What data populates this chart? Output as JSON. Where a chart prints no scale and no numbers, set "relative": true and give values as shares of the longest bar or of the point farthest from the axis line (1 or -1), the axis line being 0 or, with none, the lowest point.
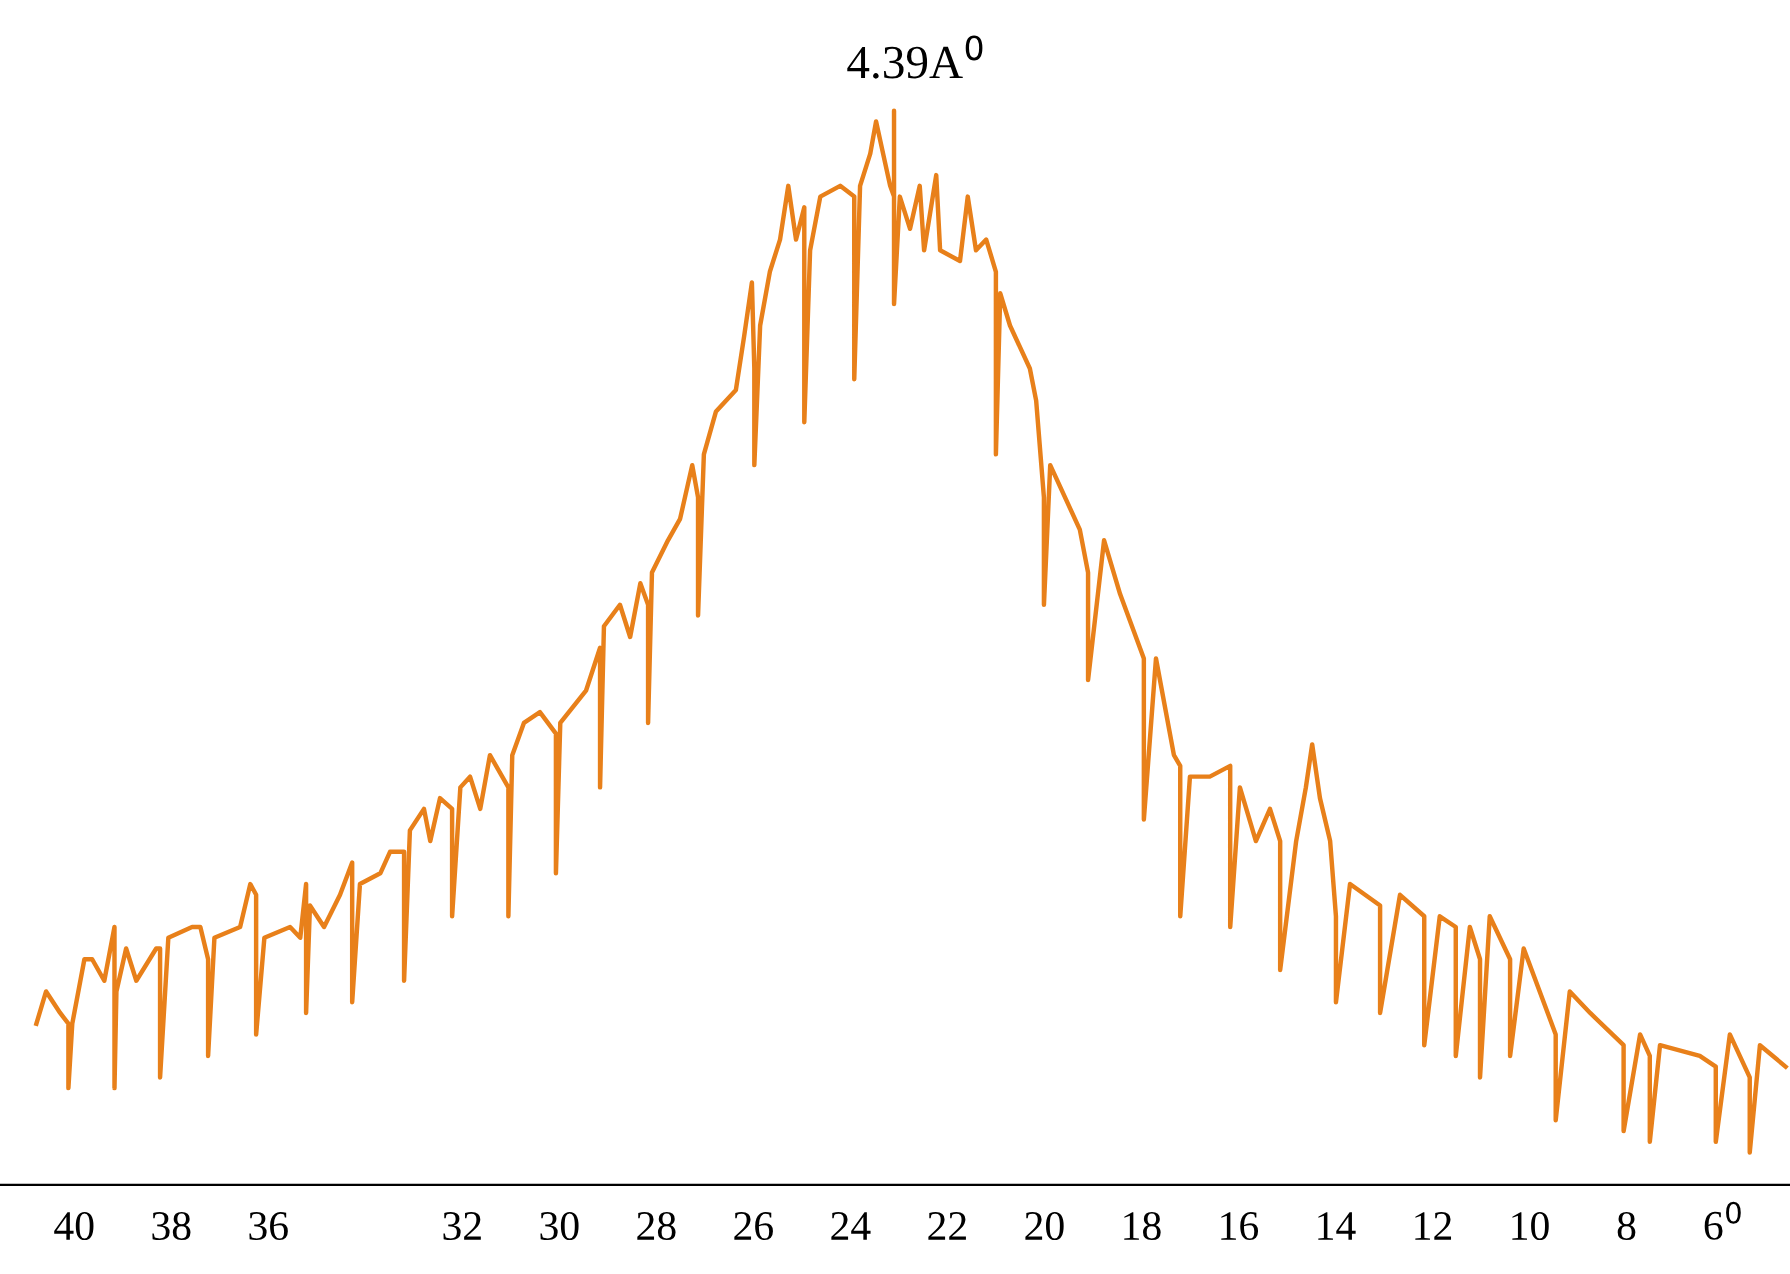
{
  "chart_data": {
    "type": "line",
    "relative": true,
    "color": "#e8801a",
    "annotations": [
      {
        "text": "4.39A$^{0}$",
        "x": 23.1,
        "y": 1.0
      }
    ],
    "xlim": [
      41.53,
      4.63
    ],
    "xticks": [
      40,
      38,
      36,
      32,
      30,
      28,
      26,
      24,
      22,
      20,
      18,
      16,
      14,
      12,
      10,
      8,
      {
        "value": 6,
        "label": "6$^{0}$"
      }
    ],
    "x": [
      40.78,
      40.58,
      40.29,
      40.12,
      40.12,
      40.04,
      39.79,
      39.63,
      39.38,
      39.17,
      39.17,
      39.13,
      38.93,
      38.72,
      38.31,
      38.23,
      38.23,
      38.06,
      37.57,
      37.4,
      37.24,
      37.24,
      37.11,
      36.58,
      36.37,
      36.25,
      36.25,
      36.08,
      35.55,
      35.34,
      35.22,
      35.22,
      35.14,
      34.85,
      34.52,
      34.27,
      34.27,
      34.11,
      33.69,
      33.49,
      33.2,
      33.2,
      33.08,
      32.79,
      32.66,
      32.46,
      32.21,
      32.21,
      32.04,
      31.84,
      31.63,
      31.43,
      31.05,
      31.05,
      30.97,
      30.73,
      30.4,
      30.07,
      30.07,
      29.98,
      29.45,
      29.16,
      29.16,
      29.08,
      28.75,
      28.54,
      28.33,
      28.17,
      28.17,
      28.09,
      27.76,
      27.51,
      27.26,
      27.14,
      27.14,
      27.02,
      26.77,
      26.36,
      26.19,
      26.03,
      25.98,
      25.98,
      25.86,
      25.66,
      25.45,
      25.28,
      25.12,
      24.95,
      24.95,
      24.83,
      24.62,
      24.21,
      23.92,
      23.92,
      23.8,
      23.59,
      23.47,
      23.18,
      23.1,
      23.1,
      23.1,
      22.98,
      22.77,
      22.57,
      22.48,
      22.23,
      22.15,
      21.74,
      21.58,
      21.41,
      21.2,
      21.0,
      21.0,
      20.91,
      20.71,
      20.3,
      20.17,
      20.01,
      20.01,
      19.88,
      19.27,
      19.1,
      19.1,
      18.77,
      18.44,
      17.95,
      17.95,
      17.7,
      17.33,
      17.2,
      17.2,
      17.0,
      16.59,
      16.17,
      16.17,
      15.97,
      15.64,
      15.35,
      15.14,
      15.14,
      14.81,
      14.61,
      14.48,
      14.32,
      14.11,
      13.99,
      13.99,
      13.7,
      13.08,
      13.08,
      12.67,
      12.17,
      12.17,
      11.85,
      11.52,
      11.52,
      11.23,
      11.02,
      11.02,
      10.82,
      10.4,
      10.4,
      10.12,
      9.46,
      9.46,
      9.17,
      8.75,
      8.06,
      8.06,
      7.72,
      7.52,
      7.52,
      7.31,
      6.49,
      6.16,
      6.16,
      5.87,
      5.46,
      5.46,
      5.25,
      4.72
    ],
    "values": [
      0.15,
      0.18,
      0.16,
      0.15,
      0.09,
      0.15,
      0.21,
      0.21,
      0.19,
      0.24,
      0.09,
      0.18,
      0.22,
      0.19,
      0.22,
      0.22,
      0.1,
      0.23,
      0.24,
      0.24,
      0.21,
      0.12,
      0.23,
      0.24,
      0.28,
      0.27,
      0.14,
      0.23,
      0.24,
      0.23,
      0.28,
      0.16,
      0.26,
      0.24,
      0.27,
      0.3,
      0.17,
      0.28,
      0.29,
      0.31,
      0.31,
      0.19,
      0.33,
      0.35,
      0.32,
      0.36,
      0.35,
      0.25,
      0.37,
      0.38,
      0.35,
      0.4,
      0.37,
      0.25,
      0.4,
      0.43,
      0.44,
      0.42,
      0.29,
      0.43,
      0.46,
      0.5,
      0.37,
      0.52,
      0.54,
      0.51,
      0.56,
      0.54,
      0.43,
      0.57,
      0.6,
      0.62,
      0.67,
      0.64,
      0.53,
      0.68,
      0.72,
      0.74,
      0.79,
      0.84,
      0.76,
      0.67,
      0.8,
      0.85,
      0.88,
      0.93,
      0.88,
      0.91,
      0.71,
      0.87,
      0.92,
      0.93,
      0.92,
      0.75,
      0.93,
      0.96,
      0.99,
      0.93,
      0.92,
      1.0,
      0.82,
      0.92,
      0.89,
      0.93,
      0.87,
      0.94,
      0.87,
      0.86,
      0.92,
      0.87,
      0.88,
      0.85,
      0.68,
      0.83,
      0.8,
      0.76,
      0.73,
      0.64,
      0.54,
      0.67,
      0.61,
      0.57,
      0.47,
      0.6,
      0.55,
      0.49,
      0.34,
      0.49,
      0.4,
      0.39,
      0.25,
      0.38,
      0.38,
      0.39,
      0.24,
      0.37,
      0.32,
      0.35,
      0.32,
      0.2,
      0.32,
      0.37,
      0.41,
      0.36,
      0.32,
      0.25,
      0.17,
      0.28,
      0.26,
      0.16,
      0.27,
      0.25,
      0.13,
      0.25,
      0.24,
      0.12,
      0.24,
      0.21,
      0.1,
      0.25,
      0.21,
      0.12,
      0.22,
      0.14,
      0.06,
      0.18,
      0.16,
      0.13,
      0.05,
      0.14,
      0.12,
      0.04,
      0.13,
      0.12,
      0.11,
      0.04,
      0.14,
      0.1,
      0.03,
      0.13,
      0.11
    ]
  }
}
